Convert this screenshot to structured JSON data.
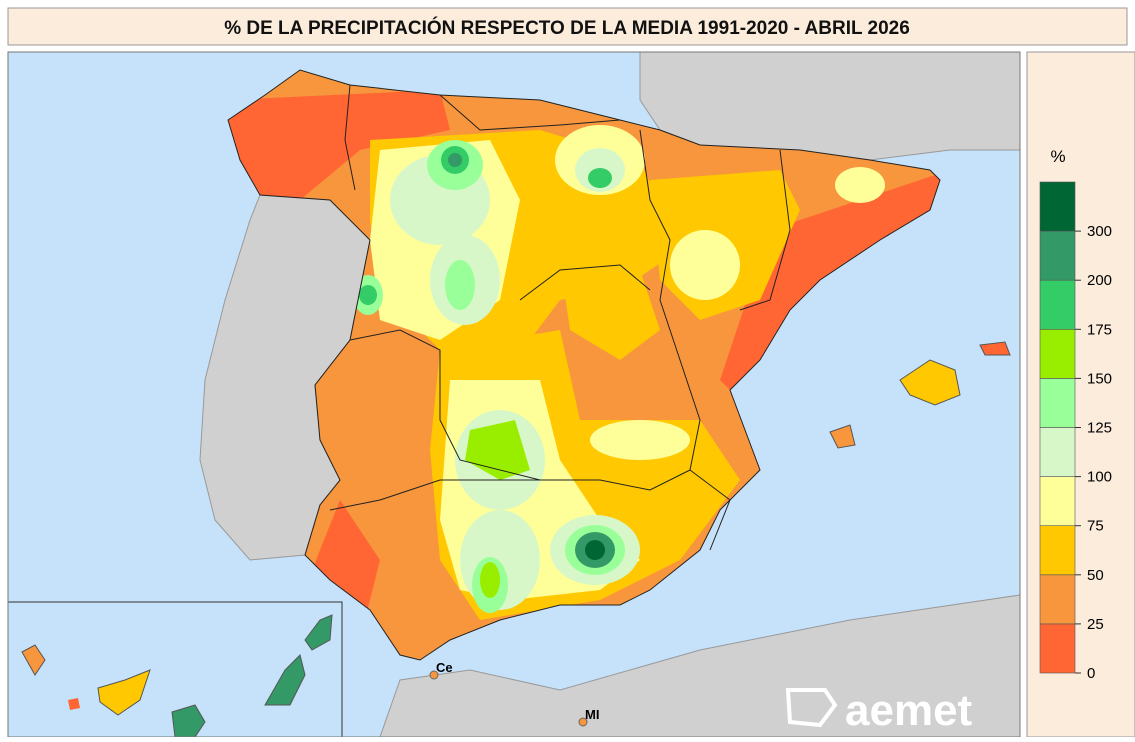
{
  "title": "% DE LA PRECIPITACIÓN RESPECTO DE LA MEDIA 1991-2020 - ABRIL 2026",
  "legend": {
    "unit": "%",
    "ticks": [
      0,
      25,
      50,
      75,
      100,
      125,
      150,
      175,
      200,
      300
    ],
    "colors": [
      "#ff6633",
      "#f7963c",
      "#ffc800",
      "#ffff99",
      "#d8f7c8",
      "#99ff99",
      "#99ee00",
      "#33cc66",
      "#339966",
      "#006633"
    ]
  },
  "places": [
    {
      "label": "Ce"
    },
    {
      "label": "MI"
    }
  ],
  "logo": "aemet"
}
